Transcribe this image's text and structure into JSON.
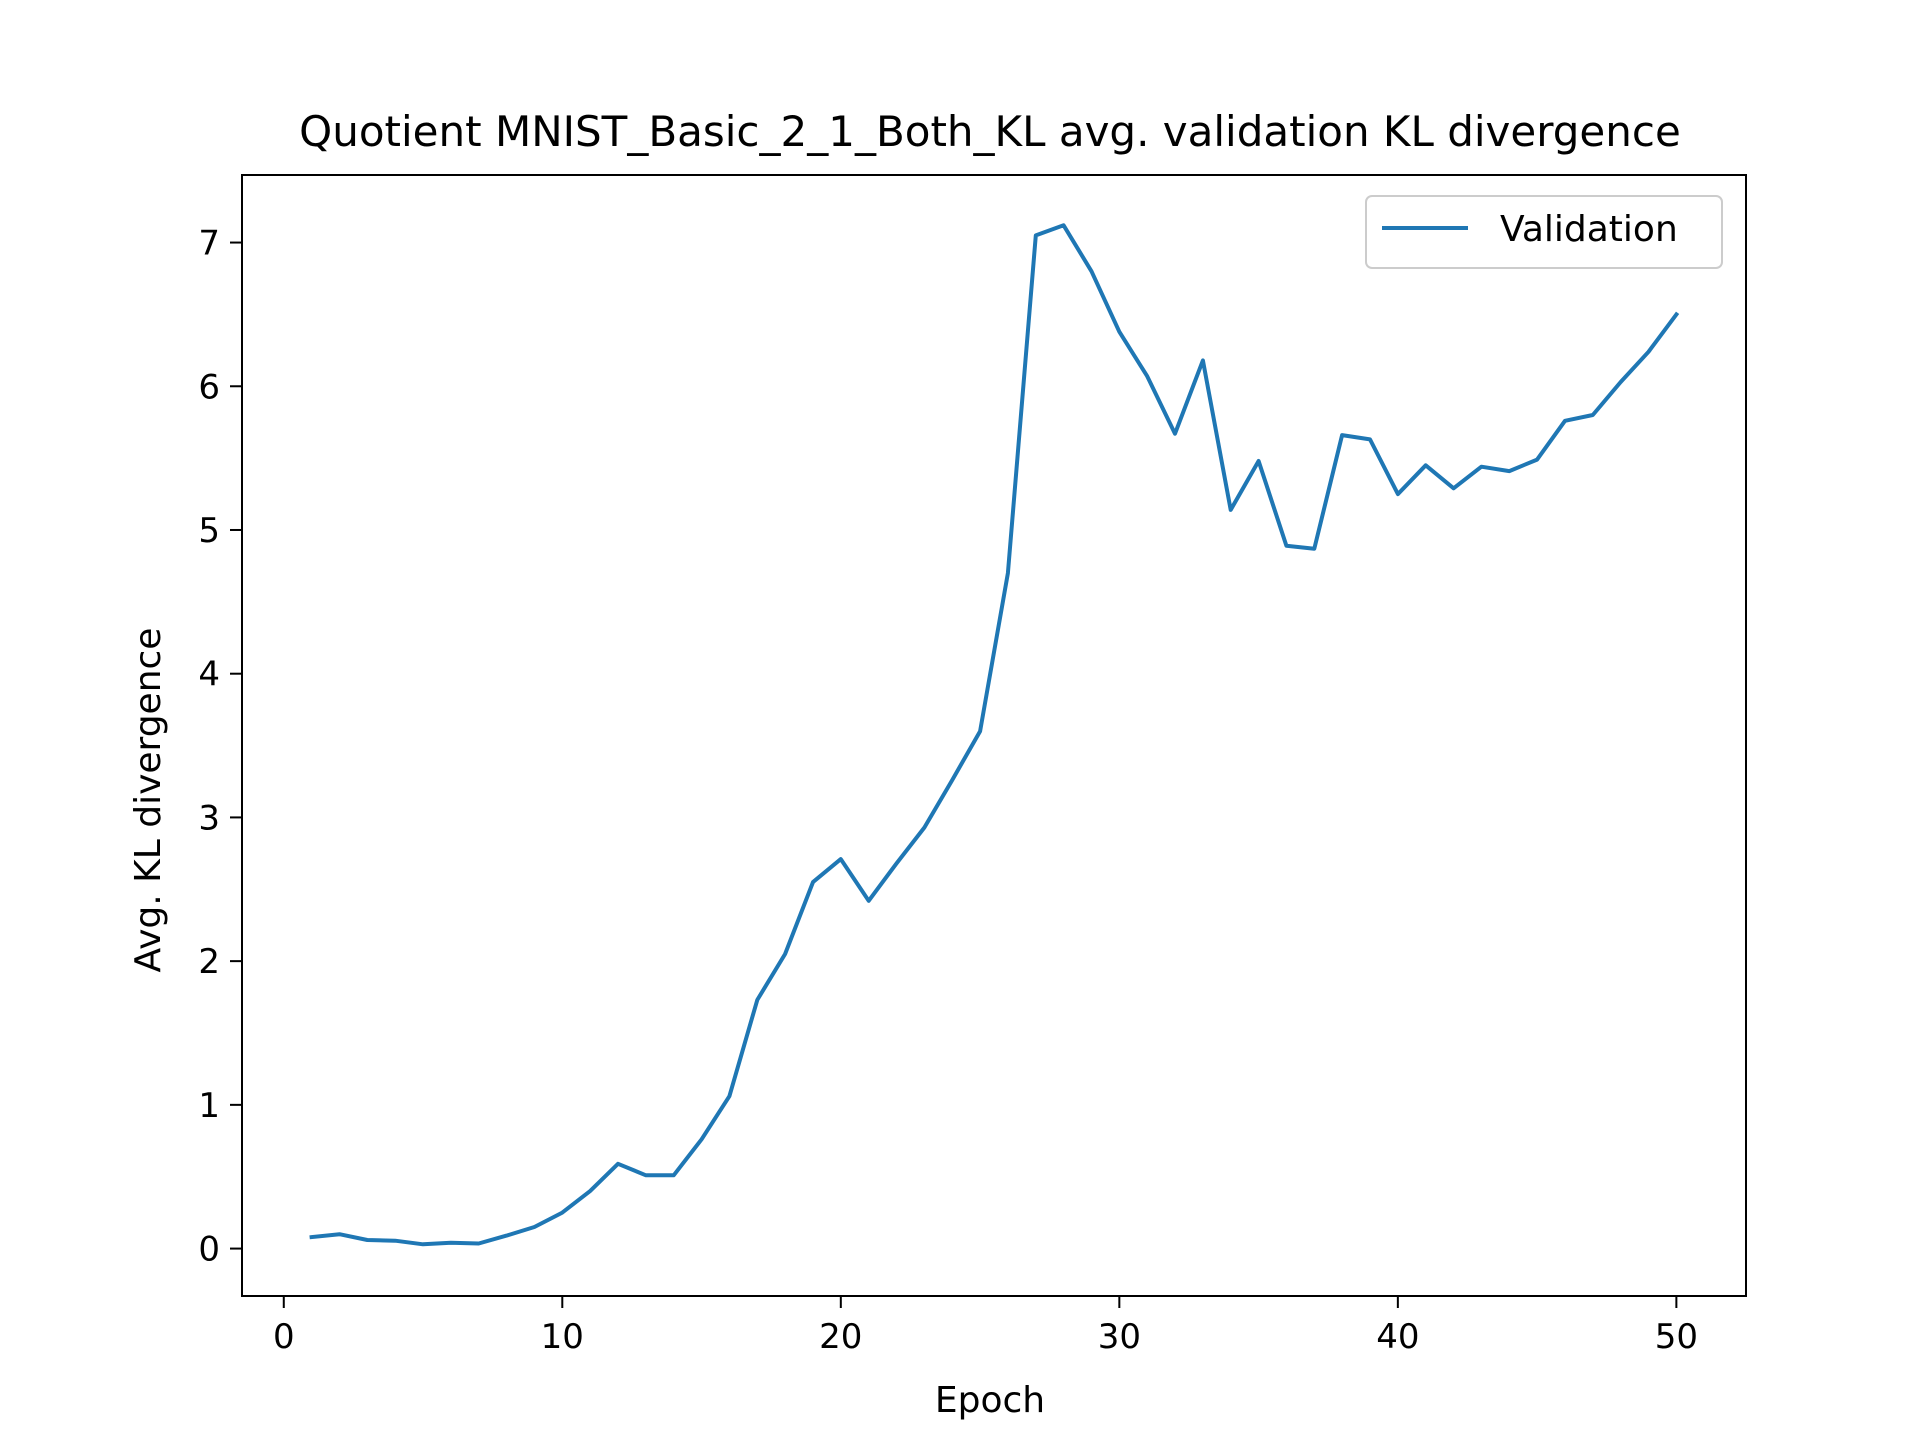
{
  "chart_data": {
    "type": "line",
    "title": "Quotient MNIST_Basic_2_1_Both_KL avg. validation KL divergence",
    "xlabel": "Epoch",
    "ylabel": "Avg. KL divergence",
    "xlim": [
      -1.5,
      52.5
    ],
    "ylim": [
      -0.33,
      7.47
    ],
    "xticks": [
      0,
      10,
      20,
      30,
      40,
      50
    ],
    "yticks": [
      0,
      1,
      2,
      3,
      4,
      5,
      6,
      7
    ],
    "xtick_labels": [
      "0",
      "10",
      "20",
      "30",
      "40",
      "50"
    ],
    "ytick_labels": [
      "0",
      "1",
      "2",
      "3",
      "4",
      "5",
      "6",
      "7"
    ],
    "grid": false,
    "legend": {
      "position": "top-right",
      "entries": [
        "Validation"
      ]
    },
    "colors": {
      "series": "#1f77b4",
      "axes": "#000000",
      "legend_border": "#cccccc"
    },
    "series": [
      {
        "name": "Validation",
        "x": [
          1,
          2,
          3,
          4,
          5,
          6,
          7,
          8,
          9,
          10,
          11,
          12,
          13,
          14,
          15,
          16,
          17,
          18,
          19,
          20,
          21,
          22,
          23,
          24,
          25,
          26,
          27,
          28,
          29,
          30,
          31,
          32,
          33,
          34,
          35,
          36,
          37,
          38,
          39,
          40,
          41,
          42,
          43,
          44,
          45,
          46,
          47,
          48,
          49,
          50
        ],
        "values": [
          0.08,
          0.1,
          0.06,
          0.055,
          0.03,
          0.04,
          0.035,
          0.09,
          0.15,
          0.25,
          0.4,
          0.59,
          0.51,
          0.51,
          0.76,
          1.06,
          1.73,
          2.05,
          2.55,
          2.71,
          2.42,
          2.68,
          2.93,
          3.26,
          3.6,
          4.7,
          7.05,
          7.12,
          6.8,
          6.38,
          6.07,
          5.67,
          6.18,
          5.14,
          5.48,
          4.89,
          4.87,
          5.66,
          5.63,
          5.25,
          5.45,
          5.29,
          5.44,
          5.41,
          5.49,
          5.76,
          5.8,
          6.03,
          6.24,
          6.5
        ]
      }
    ]
  }
}
